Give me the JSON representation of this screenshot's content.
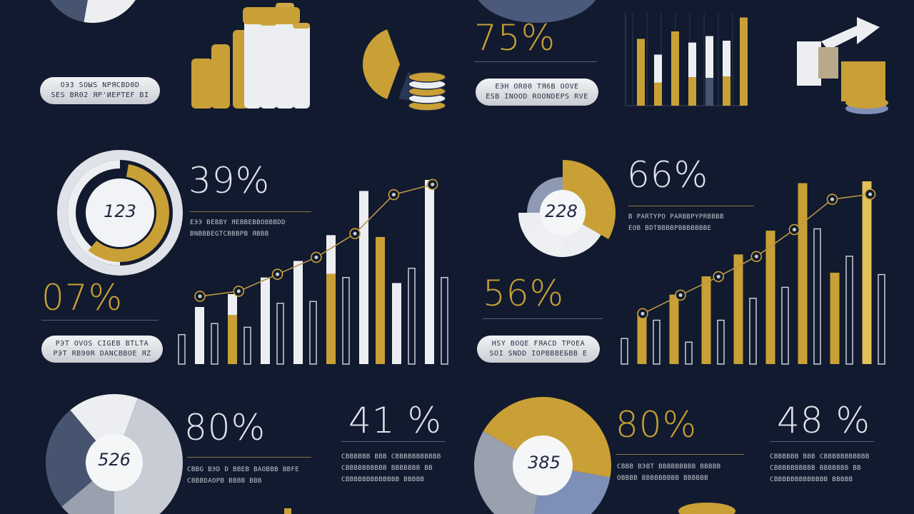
{
  "colors": {
    "background": "#111a2e",
    "gold": "#c9a035",
    "white": "#eceef2",
    "slate": "#475470",
    "grey": "#9aa1ae"
  },
  "stats": {
    "s75": "75%",
    "s39": "39%",
    "s07": "07%",
    "s66": "66%",
    "s56": "56%",
    "s80a": "80%",
    "s41": "41 %",
    "s80b": "80%",
    "s48": "48 %"
  },
  "gauges": {
    "g123": "123",
    "g228": "228",
    "g526": "526",
    "g385": "385"
  },
  "pills": {
    "p1a": "OЭ3 SOЫS NPЯCBD0D",
    "p1b": "SES BR02 ЯP'ИEPTEF BI",
    "p2a": "EЭH OR00 ТЯ6В OOVE",
    "p2b": "ЕЅВ INOOD ROONDEPS RVE",
    "p3a": "PЭT OVОS CIGEB BTLTA",
    "p3b": "PЭT RB90R DANCBBOE ЯZ",
    "p4a": "HSY BOQE FЯACD TPOEA",
    "p4b": "SOI SNDD IOPBBBEБBB E"
  },
  "captions": {
    "c39a": "EЭЭ BEBBY ЯEBBEBBOBBBDD",
    "c39b": "BNBBBEGTCBBBPB ЯBBB",
    "c66a": "B PARTYPO PARBBPYPRBBBB",
    "c66b": "EOB BDTBBBBPBBBBBBBE",
    "c80a1": "CBBG BЭD D BBEB BAOBBB BBFE",
    "c80a2": "CBBBDAOPB BBBB BBB",
    "c41a": "CBBBBBB BBB CBBBBBBBBBBB",
    "c41b": "CBBBBBBBBBB BBBBBBB BB",
    "c41c": "CBBBBBBBBBBBBB BBBBB",
    "c80b1": "CBBB BЭBT BBBBBBBBB BBBBB",
    "c80b2": "OBBBB BBBBBBBBB BBBBBB",
    "c48a": "CBBBBBB BBB CBBBBBBBBBBB",
    "c48b": "CBBBBBBBBBB BBBBBBB BB",
    "c48c": "CBBBBBBBBBBBBB BBBBB"
  },
  "chart_data": [
    {
      "type": "bar",
      "bars": [
        {
          "v": 0.16,
          "c": "outline"
        },
        {
          "v": 0.31,
          "c": "white"
        },
        {
          "v": 0.22,
          "c": "outline"
        },
        {
          "v": 0.38,
          "c": "goldwhite"
        },
        {
          "v": 0.2,
          "c": "outline"
        },
        {
          "v": 0.47,
          "c": "white"
        },
        {
          "v": 0.33,
          "c": "outline"
        },
        {
          "v": 0.56,
          "c": "white"
        },
        {
          "v": 0.34,
          "c": "outline"
        },
        {
          "v": 0.7,
          "c": "goldwhite"
        },
        {
          "v": 0.47,
          "c": "outline"
        },
        {
          "v": 0.94,
          "c": "white"
        },
        {
          "v": 0.69,
          "c": "gold"
        },
        {
          "v": 0.44,
          "c": "white"
        },
        {
          "v": 0.52,
          "c": "outline"
        },
        {
          "v": 1.0,
          "c": "white"
        },
        {
          "v": 0.47,
          "c": "outline"
        }
      ],
      "line": [
        0.4,
        0.43,
        0.53,
        0.63,
        0.77,
        1.0,
        1.06
      ]
    },
    {
      "type": "bar",
      "bars": [
        {
          "v": 0.14,
          "c": "outline"
        },
        {
          "v": 0.27,
          "c": "gold"
        },
        {
          "v": 0.24,
          "c": "outline"
        },
        {
          "v": 0.38,
          "c": "gold"
        },
        {
          "v": 0.12,
          "c": "outline"
        },
        {
          "v": 0.48,
          "c": "gold"
        },
        {
          "v": 0.24,
          "c": "outline"
        },
        {
          "v": 0.6,
          "c": "gold"
        },
        {
          "v": 0.36,
          "c": "outline"
        },
        {
          "v": 0.73,
          "c": "gold"
        },
        {
          "v": 0.42,
          "c": "outline"
        },
        {
          "v": 0.99,
          "c": "gold"
        },
        {
          "v": 0.74,
          "c": "outline"
        },
        {
          "v": 0.5,
          "c": "gold"
        },
        {
          "v": 0.59,
          "c": "outline"
        },
        {
          "v": 1.0,
          "c": "goldlight"
        },
        {
          "v": 0.49,
          "c": "outline"
        }
      ],
      "line": [
        0.3,
        0.41,
        0.52,
        0.64,
        0.8,
        0.98,
        1.01
      ]
    },
    {
      "type": "bar",
      "bars": [
        {
          "v": 0.72,
          "c": "gold"
        },
        {
          "v": 0.55,
          "c": "whitegold"
        },
        {
          "v": 0.8,
          "c": "gold"
        },
        {
          "v": 0.68,
          "c": "whitegold"
        },
        {
          "v": 0.75,
          "c": "slategold"
        },
        {
          "v": 0.7,
          "c": "whitegold"
        },
        {
          "v": 0.95,
          "c": "gold"
        }
      ]
    }
  ]
}
